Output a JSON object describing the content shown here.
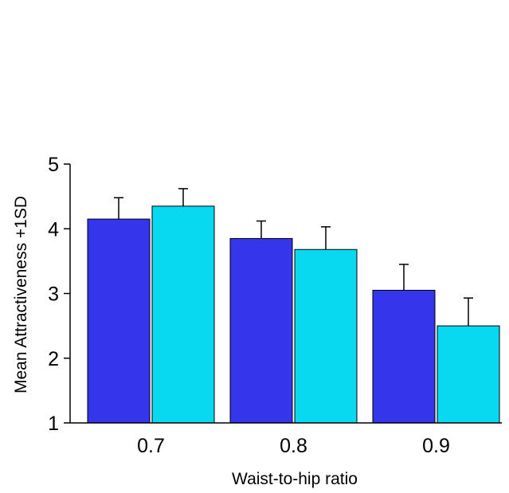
{
  "chart_data": {
    "type": "bar",
    "categories": [
      "0.7",
      "0.8",
      "0.9"
    ],
    "series": [
      {
        "color": "#3535ec",
        "values": [
          4.15,
          3.85,
          3.05
        ],
        "error_upper": [
          4.48,
          4.12,
          3.45
        ]
      },
      {
        "color": "#08d8f0",
        "values": [
          4.35,
          3.68,
          2.5
        ],
        "error_upper": [
          4.62,
          4.03,
          2.93
        ]
      }
    ],
    "xlabel": "Waist-to-hip ratio",
    "ylabel": "Mean Attractiveness +1SD",
    "ylim": [
      1,
      5
    ],
    "yticks": [
      1,
      2,
      3,
      4,
      5
    ],
    "grid": false
  }
}
